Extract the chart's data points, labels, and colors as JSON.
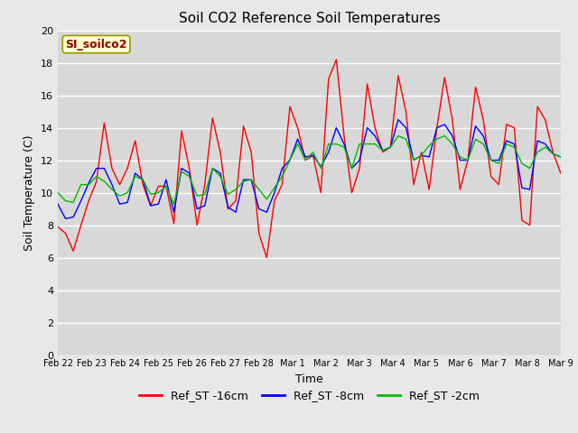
{
  "title": "Soil CO2 Reference Soil Temperatures",
  "xlabel": "Time",
  "ylabel": "Soil Temperature (C)",
  "ylim": [
    0,
    20
  ],
  "yticks": [
    0,
    2,
    4,
    6,
    8,
    10,
    12,
    14,
    16,
    18,
    20
  ],
  "x_labels": [
    "Feb 22",
    "Feb 23",
    "Feb 24",
    "Feb 25",
    "Feb 26",
    "Feb 27",
    "Feb 28",
    "Mar 1",
    "Mar 2",
    "Mar 3",
    "Mar 4",
    "Mar 5",
    "Mar 6",
    "Mar 7",
    "Mar 8",
    "Mar 9"
  ],
  "background_color": "#e8e8e8",
  "plot_bg_color": "#d8d8d8",
  "grid_color": "#ffffff",
  "legend_label": "SI_soilco2",
  "legend_box_facecolor": "#ffffcc",
  "legend_box_edgecolor": "#999900",
  "legend_text_color": "#8b0000",
  "series_names": [
    "Ref_ST -16cm",
    "Ref_ST -8cm",
    "Ref_ST -2cm"
  ],
  "series_colors": [
    "#ff0000",
    "#0000ff",
    "#00bb00"
  ],
  "red_values": [
    7.9,
    7.5,
    6.4,
    8.0,
    9.5,
    10.7,
    14.3,
    11.5,
    10.5,
    11.5,
    13.2,
    10.5,
    9.2,
    10.4,
    10.4,
    8.1,
    13.8,
    11.5,
    8.0,
    10.5,
    14.6,
    12.5,
    9.0,
    9.5,
    14.1,
    12.5,
    7.5,
    6.0,
    9.5,
    10.5,
    15.3,
    14.0,
    12.0,
    12.3,
    10.0,
    17.0,
    18.2,
    13.5,
    10.0,
    11.5,
    16.7,
    14.0,
    12.5,
    12.8,
    17.2,
    15.0,
    10.5,
    12.5,
    10.2,
    14.0,
    17.1,
    14.5,
    10.2,
    12.0,
    16.5,
    14.5,
    11.0,
    10.5,
    14.2,
    14.0,
    8.3,
    8.0,
    15.3,
    14.5,
    12.5,
    11.2
  ],
  "blue_values": [
    9.3,
    8.4,
    8.5,
    9.5,
    10.6,
    11.5,
    11.5,
    10.5,
    9.3,
    9.4,
    11.2,
    10.8,
    9.2,
    9.3,
    10.8,
    8.8,
    11.5,
    11.2,
    9.0,
    9.2,
    11.5,
    11.2,
    9.1,
    8.8,
    10.8,
    10.8,
    9.0,
    8.8,
    10.0,
    11.5,
    12.0,
    13.3,
    12.2,
    12.3,
    11.6,
    12.5,
    14.0,
    13.0,
    11.5,
    12.0,
    14.0,
    13.5,
    12.6,
    12.8,
    14.5,
    14.0,
    12.0,
    12.3,
    12.2,
    14.0,
    14.2,
    13.5,
    12.0,
    12.0,
    14.1,
    13.5,
    12.0,
    12.0,
    13.2,
    13.0,
    10.3,
    10.2,
    13.2,
    13.0,
    12.4,
    12.2
  ],
  "green_values": [
    10.0,
    9.5,
    9.4,
    10.5,
    10.5,
    11.0,
    10.7,
    10.2,
    9.8,
    10.0,
    11.0,
    10.8,
    9.9,
    10.0,
    10.4,
    9.3,
    11.3,
    11.0,
    9.8,
    9.9,
    11.5,
    11.0,
    9.9,
    10.2,
    10.7,
    10.8,
    10.2,
    9.6,
    10.3,
    11.0,
    12.0,
    13.0,
    12.0,
    12.5,
    11.5,
    13.0,
    13.0,
    12.8,
    11.5,
    13.0,
    13.0,
    13.0,
    12.6,
    12.8,
    13.5,
    13.3,
    12.0,
    12.3,
    12.9,
    13.3,
    13.5,
    13.0,
    12.2,
    12.0,
    13.3,
    13.0,
    12.0,
    11.8,
    13.0,
    12.8,
    11.8,
    11.5,
    12.5,
    12.8,
    12.4,
    12.2
  ],
  "title_fontsize": 11,
  "axis_label_fontsize": 9,
  "tick_fontsize": 8,
  "legend_fontsize": 9
}
